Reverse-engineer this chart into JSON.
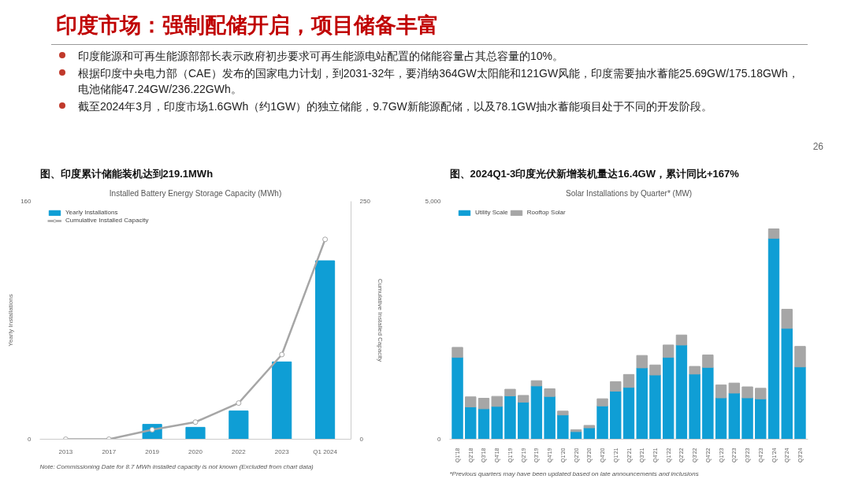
{
  "chart_data": [
    {
      "type": "other",
      "title": "印度市场：强制配储开启，项目储备丰富",
      "annotations": [
        "印度能源和可再生能源部部长表示政府初步要求可再生能源电站配置的储能容量占其总容量的10%。",
        "根据印度中央电力部（CAE）发布的国家电力计划，到2031-32年，要消纳364GW太阳能和121GW风能，印度需要抽水蓄能25.69GW/175.18GWh，电池储能47.24GW/236.22GWh。",
        "截至2024年3月，印度市场1.6GWh（约1GW）的独立储能，9.7GW新能源配储，以及78.1GW抽水蓄能项目处于不同的开发阶段。",
        "26"
      ]
    },
    {
      "type": "bar",
      "title": "图、印度累计储能装机达到219.1MWh",
      "subtitle": "Installed Battery Energy Storage Capacity (MWh)",
      "ylabel": "Yearly Installations",
      "y2label": "Cumulative Installed Capacity",
      "categories": [
        "2013",
        "2017",
        "2019",
        "2020",
        "2022",
        "2023",
        "Q1 2024"
      ],
      "ylim": [
        0,
        160
      ],
      "yticks": [
        0,
        160
      ],
      "y2lim": [
        0,
        250
      ],
      "y2ticks": [
        0,
        250
      ],
      "grid": false,
      "legend": "top left",
      "series": [
        {
          "name": "Yearly Installations",
          "color": "#0f9ed5",
          "values": [
            0,
            0,
            10,
            8,
            19,
            52,
            120
          ]
        },
        {
          "name": "Cumulative Installed Capacity",
          "type": "line",
          "axis": "y2",
          "color": "#a6a6a6",
          "marker": "circle",
          "values": [
            0,
            0,
            10,
            18,
            38,
            89,
            210
          ]
        }
      ],
      "annotations": [
        "Note: Commissioning Date for 8.7 MWh installed capacity is not known (Excluded from chart data)"
      ]
    },
    {
      "type": "bar",
      "stacked": true,
      "title": "图、2024Q1-3印度光伏新增装机量达16.4GW，累计同比+167%",
      "subtitle": "Solar Installations by Quarter* (MW)",
      "categories": [
        "Q1'18",
        "Q2'18",
        "Q3'18",
        "Q4'18",
        "Q1'19",
        "Q2'19",
        "Q3'19",
        "Q4'19",
        "Q1'20",
        "Q2'20",
        "Q3'20",
        "Q4'20",
        "Q1'21",
        "Q2'21",
        "Q3'21",
        "Q4'21",
        "Q1'22",
        "Q2'22",
        "Q3'22",
        "Q4'22",
        "Q1'23",
        "Q2'23",
        "Q3'23",
        "Q4'23",
        "Q1'24",
        "Q2'24",
        "Q3'24"
      ],
      "ylim": [
        0,
        5000
      ],
      "yticks": [
        0,
        {
          "value": 5000,
          "label": "5,000"
        }
      ],
      "grid": false,
      "legend": "top left",
      "series": [
        {
          "name": "Utility Scale",
          "color": "#0f9ed5",
          "values": [
            1720,
            680,
            640,
            690,
            910,
            780,
            1120,
            900,
            510,
            160,
            240,
            700,
            1010,
            1090,
            1500,
            1350,
            1720,
            1980,
            1370,
            1510,
            870,
            970,
            870,
            850,
            4220,
            2330,
            1520
          ]
        },
        {
          "name": "Rooftop Solar",
          "color": "#a6a6a6",
          "values": [
            210,
            210,
            220,
            210,
            140,
            140,
            110,
            160,
            80,
            40,
            50,
            150,
            200,
            270,
            260,
            210,
            260,
            210,
            160,
            260,
            270,
            210,
            230,
            220,
            200,
            400,
            430
          ]
        }
      ],
      "annotations": [
        "*Previous quarters may have been updated based on late announcements and inclusions"
      ]
    }
  ]
}
